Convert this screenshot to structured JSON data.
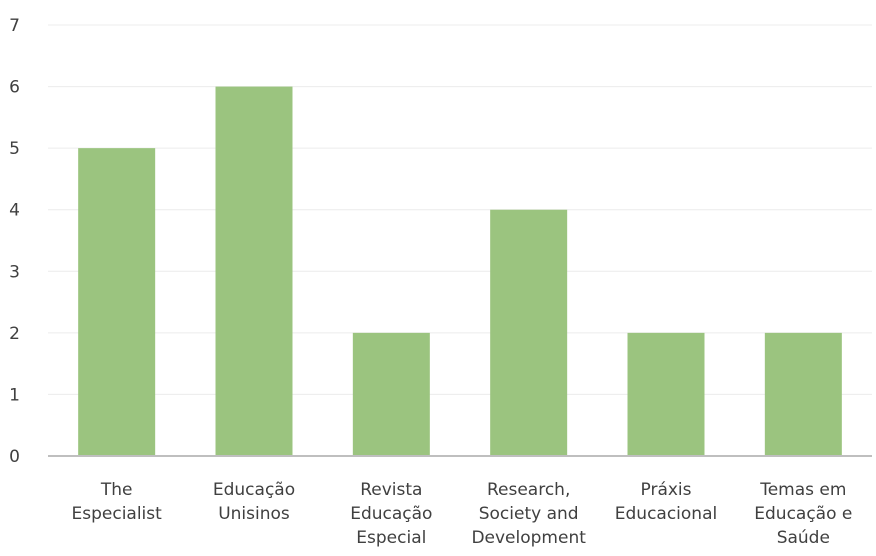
{
  "chart_data": {
    "type": "bar",
    "categories": [
      [
        "The",
        "Especialist"
      ],
      [
        "Educação",
        "Unisinos"
      ],
      [
        "Revista",
        "Educação",
        "Especial"
      ],
      [
        "Research,",
        "Society and",
        "Development"
      ],
      [
        "Práxis",
        "Educacional"
      ],
      [
        "Temas em",
        "Educação e",
        "Saúde"
      ]
    ],
    "values": [
      5,
      6,
      2,
      4,
      2,
      2
    ],
    "ylim": [
      0,
      7
    ],
    "yticks": [
      0,
      1,
      2,
      3,
      4,
      5,
      6,
      7
    ],
    "title": "",
    "xlabel": "",
    "ylabel": "",
    "grid": true,
    "bar_color": "#9bc47f",
    "grid_color": "#ececec",
    "axis_color": "#bfbfbf",
    "text_color": "#404040"
  }
}
